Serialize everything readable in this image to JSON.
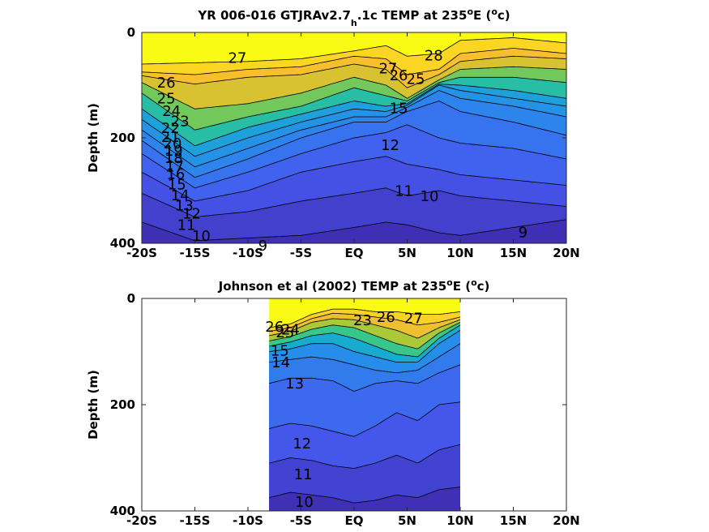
{
  "chart_data": [
    {
      "type": "heatmap",
      "subtype": "filled-contour",
      "title_parts": [
        "YR 006-016 GTJRAv2.7",
        "h",
        ".1c TEMP at 235",
        "o",
        "E (",
        "o",
        "c)"
      ],
      "ylabel": "Depth (m)",
      "x_ticks": [
        "-20S",
        "-15S",
        "-10S",
        "-5S",
        "EQ",
        "5N",
        "10N",
        "15N",
        "20N"
      ],
      "x_tick_values": [
        -20,
        -15,
        -10,
        -5,
        0,
        5,
        10,
        15,
        20
      ],
      "y_ticks": [
        "0",
        "200",
        "400"
      ],
      "y_tick_values": [
        0,
        200,
        400
      ],
      "xlim": [
        -20,
        20
      ],
      "ylim": [
        0,
        400
      ],
      "y_reversed": true,
      "data_extent_lat": [
        -20,
        20
      ],
      "colormap": "parula",
      "contour_interval": 1,
      "isotherm_depths": [
        {
          "temp": 27,
          "lat": [
            -20,
            -10,
            -5,
            0,
            3,
            5,
            8,
            10,
            15,
            20
          ],
          "depth": [
            60,
            55,
            50,
            35,
            25,
            45,
            40,
            15,
            10,
            20
          ]
        },
        {
          "temp": 26,
          "lat": [
            -20,
            -15,
            -10,
            -5,
            0,
            3,
            5,
            8,
            10,
            15,
            20
          ],
          "depth": [
            75,
            80,
            70,
            65,
            45,
            50,
            80,
            70,
            40,
            30,
            40
          ]
        },
        {
          "temp": 25,
          "lat": [
            -20,
            -15,
            -10,
            -5,
            0,
            3,
            5,
            8,
            10,
            15,
            20
          ],
          "depth": [
            82,
            98,
            85,
            80,
            60,
            70,
            105,
            80,
            55,
            45,
            50
          ]
        },
        {
          "temp": 22,
          "lat": [
            -20,
            -15,
            -10,
            -5,
            0,
            3,
            5,
            8,
            10,
            15,
            20
          ],
          "depth": [
            95,
            145,
            135,
            115,
            85,
            100,
            125,
            90,
            70,
            65,
            70
          ]
        },
        {
          "temp": 19,
          "lat": [
            -20,
            -15,
            -10,
            -5,
            0,
            3,
            5,
            8,
            10,
            15,
            20
          ],
          "depth": [
            115,
            185,
            160,
            140,
            105,
            120,
            130,
            95,
            85,
            85,
            95
          ]
        },
        {
          "temp": 16,
          "lat": [
            -20,
            -15,
            -10,
            -5,
            0,
            3,
            5,
            8,
            10,
            15,
            20
          ],
          "depth": [
            145,
            215,
            180,
            155,
            130,
            140,
            135,
            98,
            100,
            110,
            125
          ]
        },
        {
          "temp": 15,
          "lat": [
            -20,
            -15,
            -10,
            -5,
            0,
            3,
            5,
            8,
            10,
            15,
            20
          ],
          "depth": [
            165,
            235,
            200,
            170,
            145,
            150,
            138,
            100,
            110,
            125,
            140
          ]
        },
        {
          "temp": 14,
          "lat": [
            -20,
            -15,
            -10,
            -5,
            0,
            3,
            5,
            8,
            10,
            15,
            20
          ],
          "depth": [
            185,
            255,
            220,
            185,
            160,
            160,
            142,
            110,
            125,
            140,
            160
          ]
        },
        {
          "temp": 13,
          "lat": [
            -20,
            -15,
            -10,
            -5,
            0,
            3,
            5,
            8,
            10,
            15,
            20
          ],
          "depth": [
            205,
            275,
            240,
            200,
            170,
            170,
            150,
            130,
            150,
            170,
            195
          ]
        },
        {
          "temp": 12,
          "lat": [
            -20,
            -15,
            -10,
            -5,
            0,
            3,
            5,
            8,
            10,
            15,
            20
          ],
          "depth": [
            230,
            295,
            265,
            230,
            200,
            190,
            175,
            200,
            210,
            220,
            240
          ]
        },
        {
          "temp": 11,
          "lat": [
            -20,
            -15,
            -10,
            -5,
            0,
            3,
            5,
            8,
            10,
            15,
            20
          ],
          "depth": [
            265,
            320,
            300,
            265,
            245,
            235,
            250,
            260,
            270,
            280,
            290
          ]
        },
        {
          "temp": 10,
          "lat": [
            -20,
            -15,
            -10,
            -5,
            0,
            3,
            5,
            8,
            10,
            15,
            20
          ],
          "depth": [
            305,
            350,
            340,
            320,
            305,
            295,
            310,
            300,
            310,
            320,
            330
          ]
        },
        {
          "temp": 9,
          "lat": [
            -20,
            -15,
            -10,
            -5,
            0,
            3,
            5,
            8,
            10,
            15,
            20
          ],
          "depth": [
            360,
            395,
            390,
            385,
            370,
            360,
            365,
            380,
            385,
            370,
            355
          ]
        }
      ],
      "contour_labels": [
        {
          "text": "27",
          "lat": -11,
          "depth": 50
        },
        {
          "text": "28",
          "lat": 7.5,
          "depth": 45
        },
        {
          "text": "27",
          "lat": 3.2,
          "depth": 70
        },
        {
          "text": "26",
          "lat": 4.2,
          "depth": 83
        },
        {
          "text": "25",
          "lat": 5.8,
          "depth": 90
        },
        {
          "text": "26",
          "lat": -17.7,
          "depth": 97
        },
        {
          "text": "25",
          "lat": -17.7,
          "depth": 127
        },
        {
          "text": "24",
          "lat": -17.2,
          "depth": 151
        },
        {
          "text": "23",
          "lat": -16.4,
          "depth": 170
        },
        {
          "text": "22",
          "lat": -17.3,
          "depth": 183
        },
        {
          "text": "21",
          "lat": -17.3,
          "depth": 200
        },
        {
          "text": "20",
          "lat": -17.1,
          "depth": 212
        },
        {
          "text": "19",
          "lat": -17.0,
          "depth": 226
        },
        {
          "text": "18",
          "lat": -17.0,
          "depth": 240
        },
        {
          "text": "17",
          "lat": -16.9,
          "depth": 256
        },
        {
          "text": "16",
          "lat": -16.8,
          "depth": 270
        },
        {
          "text": "15",
          "lat": -16.7,
          "depth": 290
        },
        {
          "text": "14",
          "lat": -16.4,
          "depth": 311
        },
        {
          "text": "13",
          "lat": -16.0,
          "depth": 330
        },
        {
          "text": "12",
          "lat": -15.3,
          "depth": 345
        },
        {
          "text": "11",
          "lat": -15.8,
          "depth": 367
        },
        {
          "text": "10",
          "lat": -14.4,
          "depth": 388
        },
        {
          "text": "9",
          "lat": -8.6,
          "depth": 406
        },
        {
          "text": "15",
          "lat": 4.2,
          "depth": 145
        },
        {
          "text": "12",
          "lat": 3.4,
          "depth": 215
        },
        {
          "text": "11",
          "lat": 4.7,
          "depth": 302
        },
        {
          "text": "10",
          "lat": 7.1,
          "depth": 312
        },
        {
          "text": "9",
          "lat": 15.9,
          "depth": 381
        }
      ]
    },
    {
      "type": "heatmap",
      "subtype": "filled-contour",
      "title_parts": [
        "Johnson et al (2002) TEMP at 235",
        "o",
        "E (",
        "o",
        "c)"
      ],
      "ylabel": "Depth (m)",
      "x_ticks": [
        "-20S",
        "-15S",
        "-10S",
        "-5S",
        "EQ",
        "5N",
        "10N",
        "15N",
        "20N"
      ],
      "x_tick_values": [
        -20,
        -15,
        -10,
        -5,
        0,
        5,
        10,
        15,
        20
      ],
      "y_ticks": [
        "0",
        "200",
        "400"
      ],
      "y_tick_values": [
        0,
        200,
        400
      ],
      "xlim": [
        -20,
        20
      ],
      "ylim": [
        0,
        400
      ],
      "y_reversed": true,
      "data_extent_lat": [
        -8,
        10
      ],
      "colormap": "parula",
      "contour_interval": 1,
      "isotherm_depths": [
        {
          "temp": 26,
          "lat": [
            -8,
            -6,
            -4,
            -2,
            0,
            2,
            4,
            6,
            8,
            10
          ],
          "depth": [
            55,
            48,
            30,
            20,
            20,
            25,
            25,
            30,
            30,
            25
          ]
        },
        {
          "temp": 25,
          "lat": [
            -8,
            -6,
            -4,
            -2,
            0,
            2,
            4,
            6,
            8,
            10
          ],
          "depth": [
            62,
            55,
            38,
            28,
            30,
            35,
            40,
            50,
            45,
            35
          ]
        },
        {
          "temp": 23,
          "lat": [
            -8,
            -6,
            -4,
            -2,
            0,
            2,
            4,
            6,
            8,
            10
          ],
          "depth": [
            70,
            62,
            45,
            38,
            40,
            50,
            60,
            75,
            55,
            40
          ]
        },
        {
          "temp": 20,
          "lat": [
            -8,
            -6,
            -4,
            -2,
            0,
            2,
            4,
            6,
            8,
            10
          ],
          "depth": [
            80,
            72,
            58,
            50,
            55,
            70,
            85,
            95,
            65,
            45
          ]
        },
        {
          "temp": 17,
          "lat": [
            -8,
            -6,
            -4,
            -2,
            0,
            2,
            4,
            6,
            8,
            10
          ],
          "depth": [
            90,
            82,
            70,
            65,
            75,
            90,
            105,
            110,
            75,
            50
          ]
        },
        {
          "temp": 15,
          "lat": [
            -8,
            -6,
            -4,
            -2,
            0,
            2,
            4,
            6,
            8,
            10
          ],
          "depth": [
            100,
            95,
            85,
            85,
            100,
            110,
            120,
            120,
            85,
            60
          ]
        },
        {
          "temp": 14,
          "lat": [
            -8,
            -6,
            -4,
            -2,
            0,
            2,
            4,
            6,
            8,
            10
          ],
          "depth": [
            120,
            115,
            110,
            115,
            125,
            135,
            140,
            135,
            110,
            85
          ]
        },
        {
          "temp": 13,
          "lat": [
            -8,
            -6,
            -4,
            -2,
            0,
            2,
            4,
            6,
            8,
            10
          ],
          "depth": [
            160,
            150,
            150,
            155,
            175,
            160,
            155,
            160,
            140,
            125
          ]
        },
        {
          "temp": 12,
          "lat": [
            -8,
            -6,
            -4,
            -2,
            0,
            2,
            4,
            6,
            8,
            10
          ],
          "depth": [
            245,
            235,
            240,
            250,
            260,
            240,
            215,
            230,
            200,
            195
          ]
        },
        {
          "temp": 11,
          "lat": [
            -8,
            -6,
            -4,
            -2,
            0,
            2,
            4,
            6,
            8,
            10
          ],
          "depth": [
            310,
            300,
            305,
            315,
            320,
            310,
            295,
            310,
            285,
            275
          ]
        },
        {
          "temp": 10,
          "lat": [
            -8,
            -6,
            -4,
            -2,
            0,
            2,
            4,
            6,
            8,
            10
          ],
          "depth": [
            375,
            365,
            370,
            375,
            385,
            380,
            370,
            375,
            360,
            355
          ]
        }
      ],
      "contour_labels": [
        {
          "text": "26",
          "lat": -7.5,
          "depth": 55
        },
        {
          "text": "25",
          "lat": -6.5,
          "depth": 66
        },
        {
          "text": "24",
          "lat": -6.0,
          "depth": 60
        },
        {
          "text": "23",
          "lat": 0.8,
          "depth": 43
        },
        {
          "text": "26",
          "lat": 3.0,
          "depth": 37
        },
        {
          "text": "27",
          "lat": 5.6,
          "depth": 39
        },
        {
          "text": "15",
          "lat": -7.0,
          "depth": 100
        },
        {
          "text": "14",
          "lat": -6.9,
          "depth": 122
        },
        {
          "text": "13",
          "lat": -5.6,
          "depth": 162
        },
        {
          "text": "12",
          "lat": -4.9,
          "depth": 275
        },
        {
          "text": "11",
          "lat": -4.8,
          "depth": 333
        },
        {
          "text": "10",
          "lat": -4.7,
          "depth": 385
        }
      ]
    }
  ]
}
